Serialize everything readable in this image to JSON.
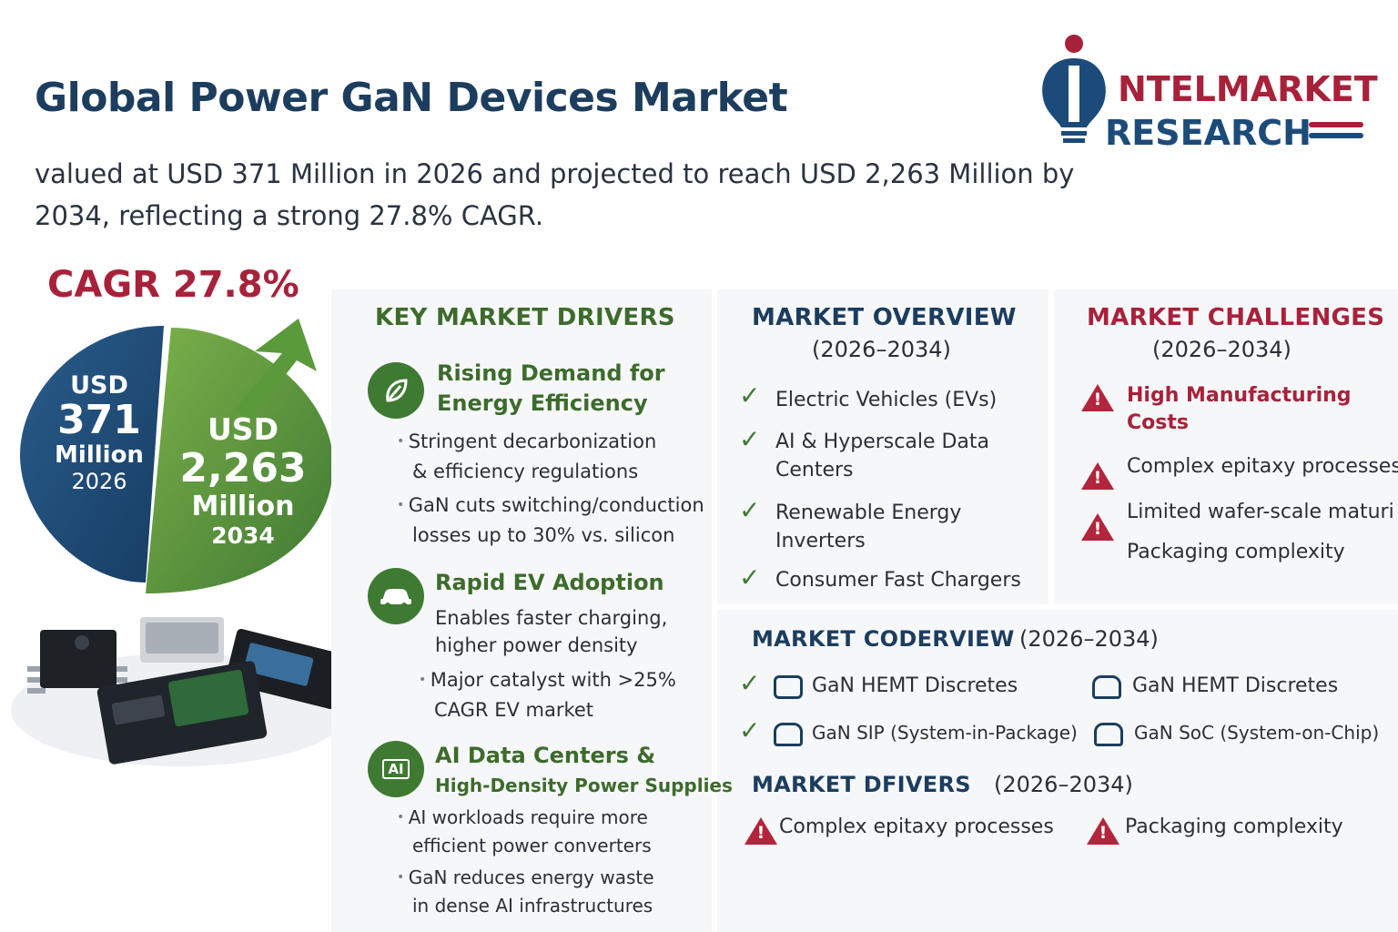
{
  "header": {
    "title": "Global Power GaN Devices Market",
    "subtitle_line1": "valued at USD 371 Million in 2026 and projected to reach USD 2,263 Million by",
    "subtitle_line2": "2034, reflecting a strong 27.8% CAGR."
  },
  "logo": {
    "line1": "NTELMARKET",
    "line2": "RESEARCH"
  },
  "cagr": {
    "label": "CAGR 27.8%",
    "start": {
      "prefix": "USD",
      "value": "371",
      "unit": "Million",
      "year": "2026"
    },
    "end": {
      "prefix": "USD",
      "value": "2,263",
      "unit": "Million",
      "year": "2034"
    }
  },
  "drivers": {
    "heading": "KEY MARKET DRIVERS",
    "items": [
      {
        "title_line1": "Rising Demand for",
        "title_line2": "Energy Efficiency",
        "icon": "leaf-icon",
        "points": [
          {
            "line1": "Stringent decarbonization",
            "line2": "& efficiency regulations"
          },
          {
            "line1": "GaN cuts switching/conduction",
            "line2": "losses up to 30% vs. silicon"
          }
        ]
      },
      {
        "title_line1": "Rapid EV Adoption",
        "icon": "car-icon",
        "text_line1": "Enables faster charging,",
        "text_line2": "higher power density",
        "points": [
          {
            "line1": "Major catalyst with >25%",
            "line2": "CAGR EV market"
          }
        ]
      },
      {
        "title_line1": "AI Data Centers &",
        "title_line2": "High-Density Power Supplies",
        "icon": "ai-chip-icon",
        "icon_text": "AI",
        "points": [
          {
            "line1": "AI workloads require more",
            "line2": "efficient power converters"
          },
          {
            "line1": "GaN reduces energy waste",
            "line2": "in dense AI infrastructures"
          }
        ]
      }
    ]
  },
  "overview": {
    "heading": "MARKET OVERVIEW",
    "years": "(2026–2034)",
    "items": [
      {
        "line1": "Electric Vehicles (EVs)"
      },
      {
        "line1": "AI & Hyperscale Data",
        "line2": "Centers"
      },
      {
        "line1": "Renewable Energy",
        "line2": "Inverters"
      },
      {
        "line1": "Consumer Fast Chargers"
      }
    ]
  },
  "challenges": {
    "heading": "MARKET CHALLENGES",
    "years": "(2026–2034)",
    "highlight_line1": "High Manufacturing",
    "highlight_line2": "Costs",
    "items": [
      "Complex epitaxy processes",
      "Limited wafer-scale maturi",
      "Packaging complexity"
    ]
  },
  "coverview": {
    "heading": "MARKET CODERVIEW",
    "years": "(2026–2034)",
    "items": [
      "GaN HEMT Discretes",
      "GaN HEMT Discretes",
      "GaN SIP (System-in-Package)",
      "GaN SoC (System-on-Chip)"
    ]
  },
  "drivers2": {
    "heading": "MARKET DFIVERS",
    "years": "(2026–2034)",
    "items": [
      "Complex epitaxy processes",
      "Packaging complexity"
    ]
  },
  "colors": {
    "navy": "#1c3d5e",
    "green": "#3f7a33",
    "red": "#a8213a"
  }
}
